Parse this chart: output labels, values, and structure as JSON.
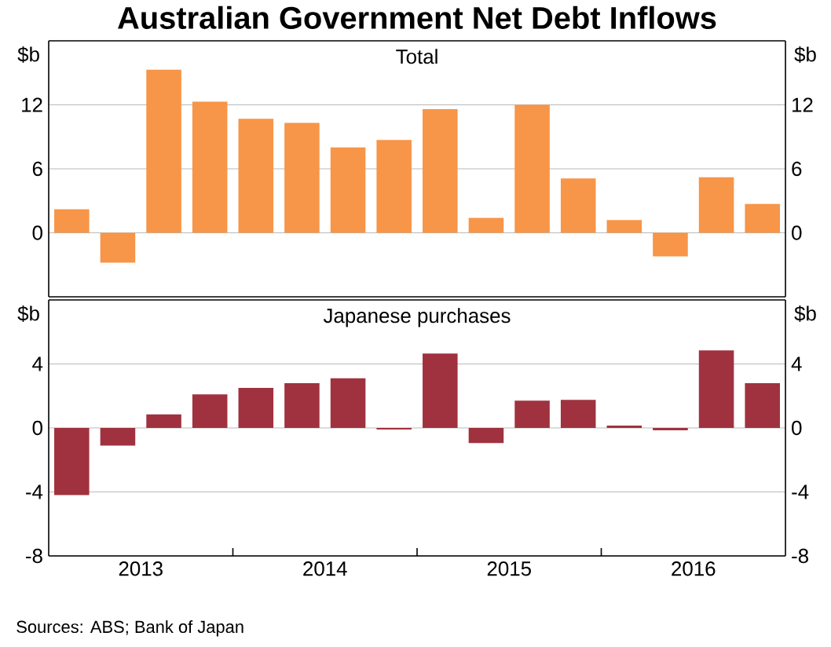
{
  "chart_data": [
    {
      "type": "bar",
      "title": "Australian Government Net Debt Inflows",
      "subtitle": "Total",
      "ylabel": "$b",
      "y2label": "$b",
      "x": [
        2013.125,
        2013.375,
        2013.625,
        2013.875,
        2014.125,
        2014.375,
        2014.625,
        2014.875,
        2015.125,
        2015.375,
        2015.625,
        2015.875,
        2016.125,
        2016.375,
        2016.625,
        2016.875
      ],
      "values": [
        2.2,
        -2.8,
        15.3,
        12.3,
        10.7,
        10.3,
        8.0,
        8.7,
        11.6,
        1.4,
        12.0,
        5.1,
        1.2,
        -2.2,
        5.2,
        2.7
      ],
      "color": "#f79548",
      "xlim": [
        2013,
        2017
      ],
      "ylim": [
        -6,
        18
      ],
      "yticks": [
        0,
        6,
        12
      ],
      "y2lim": [
        -6,
        18
      ],
      "y2ticks": [
        0,
        6,
        12
      ],
      "grid": "y",
      "tick_labels": "y"
    },
    {
      "type": "bar",
      "subtitle": "Japanese purchases",
      "ylabel": "$b",
      "y2label": "$b",
      "x": [
        2013.125,
        2013.375,
        2013.625,
        2013.875,
        2014.125,
        2014.375,
        2014.625,
        2014.875,
        2015.125,
        2015.375,
        2015.625,
        2015.875,
        2016.125,
        2016.375,
        2016.625,
        2016.875
      ],
      "values": [
        -4.2,
        -1.1,
        0.84,
        2.1,
        2.5,
        2.8,
        3.1,
        -0.1,
        4.65,
        -0.95,
        1.7,
        1.75,
        0.15,
        -0.15,
        4.85,
        2.8
      ],
      "color": "#a0323f",
      "xlim": [
        2013,
        2017
      ],
      "xticks": [
        {
          "value": 2013.5,
          "label": "2013"
        },
        {
          "value": 2014.5,
          "label": "2014"
        },
        {
          "value": 2015.5,
          "label": "2015"
        },
        {
          "value": 2016.5,
          "label": "2016"
        },
        {
          "value": 2014,
          "label": null
        },
        {
          "value": 2015,
          "label": null
        },
        {
          "value": 2016,
          "label": null
        }
      ],
      "ylim": [
        -8,
        8
      ],
      "yticks": [
        -8,
        -4,
        0,
        4
      ],
      "y2lim": [
        -8,
        8
      ],
      "y2ticks": [
        -8,
        -4,
        0,
        4
      ],
      "grid": "y",
      "annotations": [
        "Sources: ABS; Bank of Japan"
      ]
    }
  ]
}
